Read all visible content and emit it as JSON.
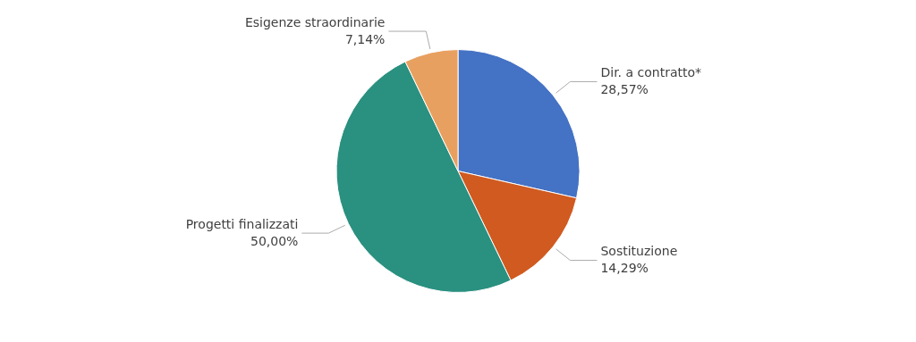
{
  "chart_data": {
    "type": "pie",
    "categories": [
      "Dir. a contratto*",
      "Sostituzione",
      "Progetti finalizzati",
      "Esigenze straordinarie"
    ],
    "values": [
      28.57,
      14.29,
      50.0,
      7.14
    ],
    "value_labels": [
      "28,57%",
      "14,29%",
      "50,00%",
      "7,14%"
    ],
    "colors": [
      "#4472C4",
      "#D05A20",
      "#2A9080",
      "#E8A060"
    ],
    "data_labels": true
  }
}
